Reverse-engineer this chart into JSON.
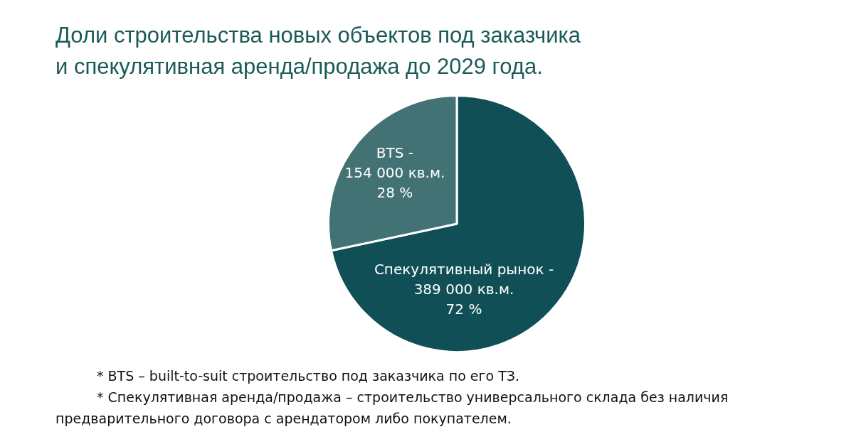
{
  "chart_data": {
    "type": "pie",
    "title": "Доли строительства новых объектов под заказчика\nи спекулятивная аренда/продажа до 2029 года.",
    "categories": [
      "Спекулятивный рынок -",
      "BTS -"
    ],
    "values": [
      389000,
      154000
    ],
    "value_labels": [
      "389 000 кв.м.\n72 %",
      "154 000 кв.м.\n28 %"
    ],
    "colors": [
      "#114f57",
      "#437275"
    ],
    "legend": false,
    "annotations": [
      "* BTS – built-to-suit строительство под заказчика по его ТЗ.",
      "* Спекулятивная аренда/продажа – строительство универсального склада без наличия предварительного договора с арендатором либо покупателем."
    ]
  }
}
